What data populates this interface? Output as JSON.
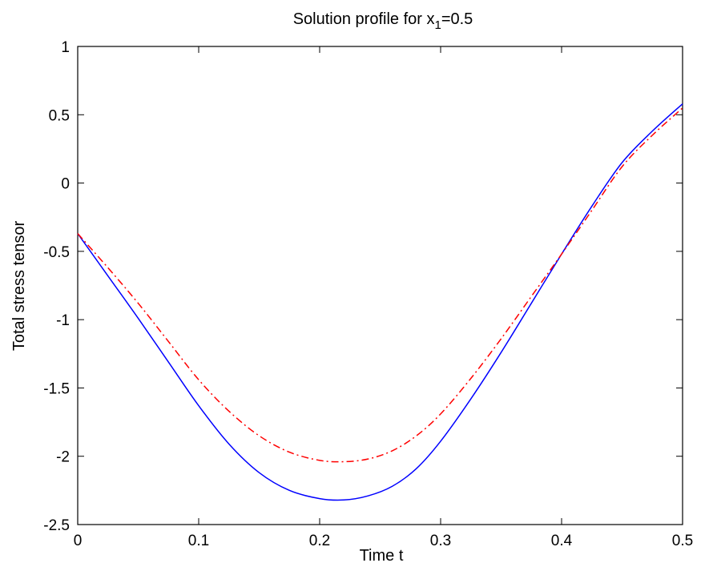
{
  "chart_data": {
    "type": "line",
    "title_prefix": "Solution profile for x",
    "title_subscript": "1",
    "title_suffix": "=0.5",
    "xlabel": "Time t",
    "ylabel": "Total stress tensor",
    "xlim": [
      0,
      0.5
    ],
    "ylim": [
      -2.5,
      1
    ],
    "grid": false,
    "x_ticks": [
      0,
      0.1,
      0.2,
      0.3,
      0.4,
      0.5
    ],
    "x_tick_labels": [
      "0",
      "0.1",
      "0.2",
      "0.3",
      "0.4",
      "0.5"
    ],
    "y_ticks": [
      -2.5,
      -2,
      -1.5,
      -1,
      -0.5,
      0,
      0.5,
      1
    ],
    "y_tick_labels": [
      "-2.5",
      "-2",
      "-1.5",
      "-1",
      "-0.5",
      "0",
      "0.5",
      "1"
    ],
    "series": [
      {
        "color": "#0000ff",
        "style": "solid",
        "x": [
          0,
          0.025,
          0.05,
          0.075,
          0.1,
          0.125,
          0.15,
          0.175,
          0.2,
          0.22,
          0.24,
          0.26,
          0.28,
          0.3,
          0.325,
          0.35,
          0.375,
          0.4,
          0.425,
          0.45,
          0.475,
          0.5
        ],
        "y": [
          -0.37,
          -0.68,
          -0.99,
          -1.31,
          -1.63,
          -1.91,
          -2.12,
          -2.25,
          -2.31,
          -2.32,
          -2.29,
          -2.22,
          -2.09,
          -1.89,
          -1.58,
          -1.24,
          -0.88,
          -0.52,
          -0.17,
          0.15,
          0.38,
          0.58
        ]
      },
      {
        "color": "#ff0000",
        "style": "dashdot",
        "x": [
          0,
          0.025,
          0.05,
          0.075,
          0.1,
          0.125,
          0.15,
          0.175,
          0.2,
          0.22,
          0.24,
          0.26,
          0.28,
          0.3,
          0.325,
          0.35,
          0.375,
          0.4,
          0.425,
          0.45,
          0.475,
          0.5
        ],
        "y": [
          -0.37,
          -0.62,
          -0.88,
          -1.16,
          -1.44,
          -1.67,
          -1.85,
          -1.97,
          -2.03,
          -2.04,
          -2.02,
          -1.96,
          -1.85,
          -1.69,
          -1.43,
          -1.14,
          -0.83,
          -0.52,
          -0.2,
          0.12,
          0.35,
          0.55
        ]
      }
    ]
  }
}
